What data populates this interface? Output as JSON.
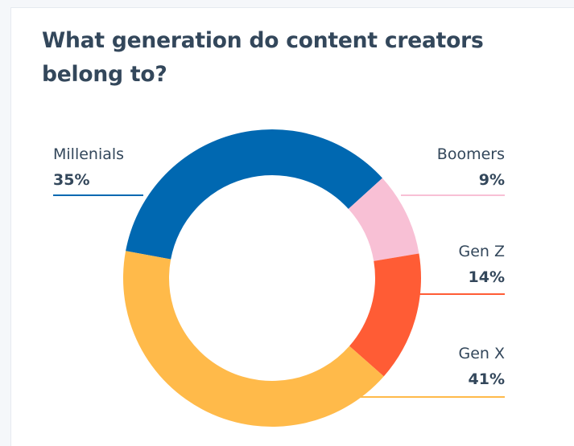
{
  "title": "What generation do content creators belong to?",
  "chart_data": {
    "type": "pie",
    "title": "What generation do content creators belong to?",
    "slices": [
      {
        "label": "Millenials",
        "value": 35,
        "value_label": "35%",
        "color": "#0068b1"
      },
      {
        "label": "Boomers",
        "value": 9,
        "value_label": "9%",
        "color": "#f8c0d5"
      },
      {
        "label": "Gen Z",
        "value": 14,
        "value_label": "14%",
        "color": "#ff5c35"
      },
      {
        "label": "Gen X",
        "value": 41,
        "value_label": "41%",
        "color": "#ffba4a"
      }
    ]
  }
}
